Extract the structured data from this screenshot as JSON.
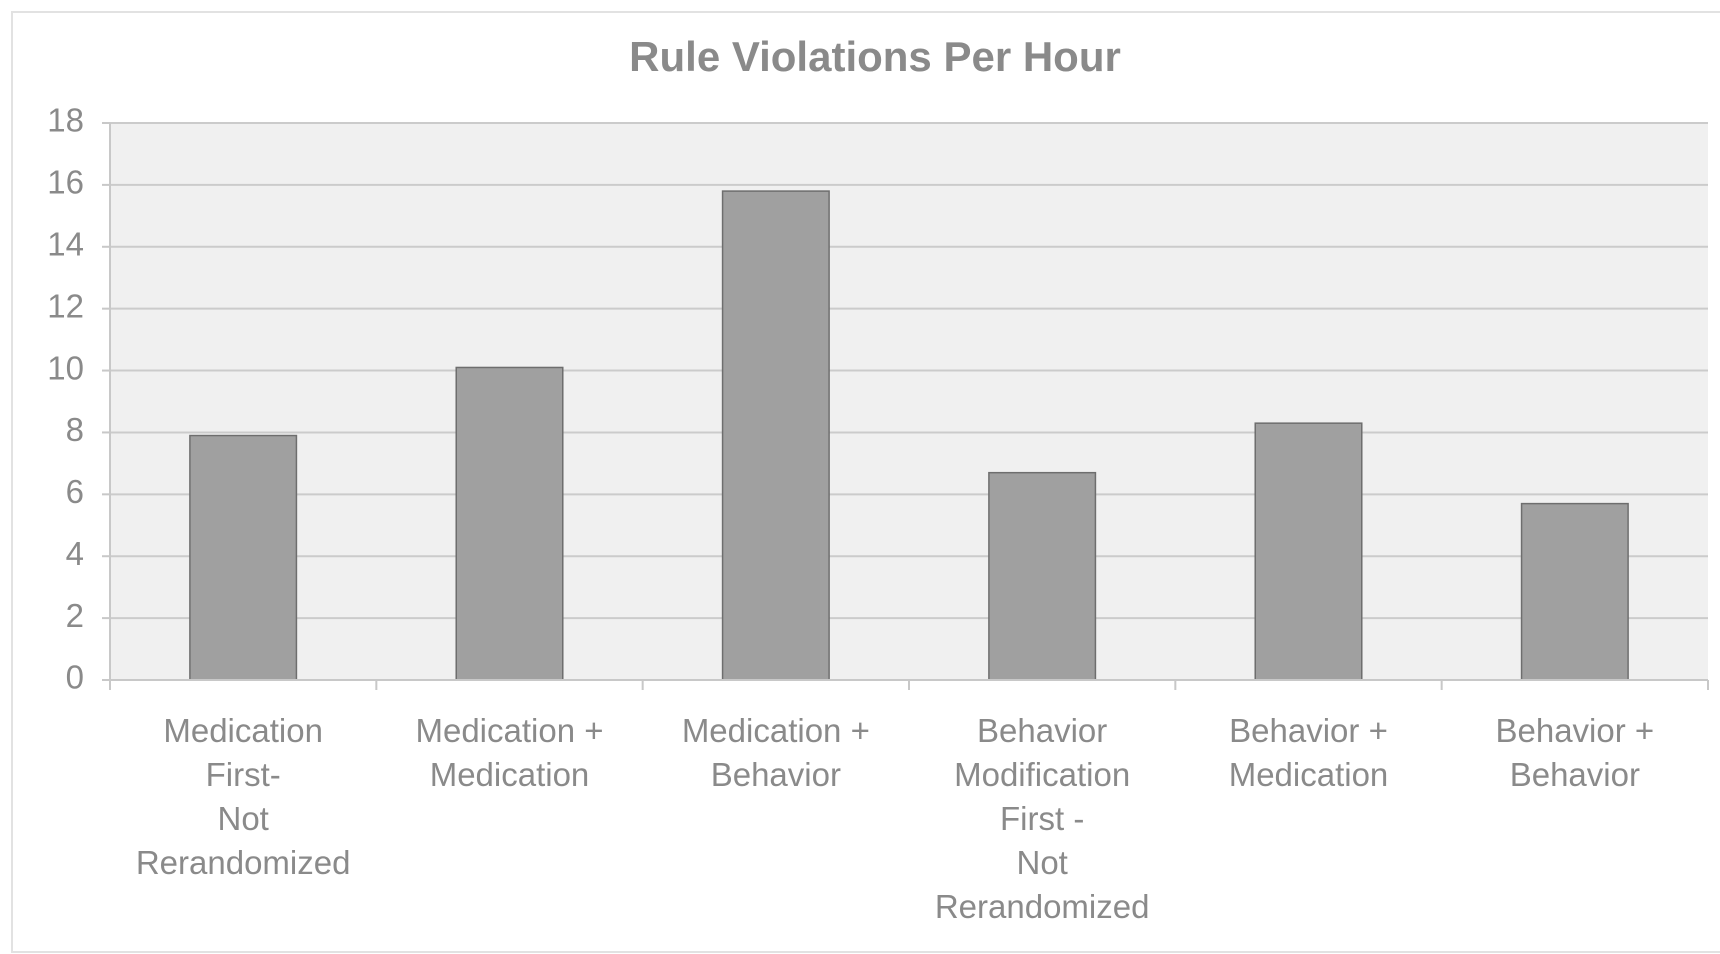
{
  "chart_data": {
    "type": "bar",
    "title": "Rule Violations Per Hour",
    "categories": [
      "Medication\nFirst-\nNot\nRerandomized",
      "Medication +\nMedication",
      "Medication +\nBehavior",
      "Behavior\nModification\nFirst -\nNot\nRerandomized",
      "Behavior +\nMedication",
      "Behavior +\nBehavior"
    ],
    "values": [
      7.9,
      10.1,
      15.8,
      6.7,
      8.3,
      5.7
    ],
    "color": "#a0a0a0",
    "ylim": [
      0,
      18
    ],
    "yticks": [
      0,
      2,
      4,
      6,
      8,
      10,
      12,
      14,
      16,
      18
    ],
    "grid": true
  }
}
